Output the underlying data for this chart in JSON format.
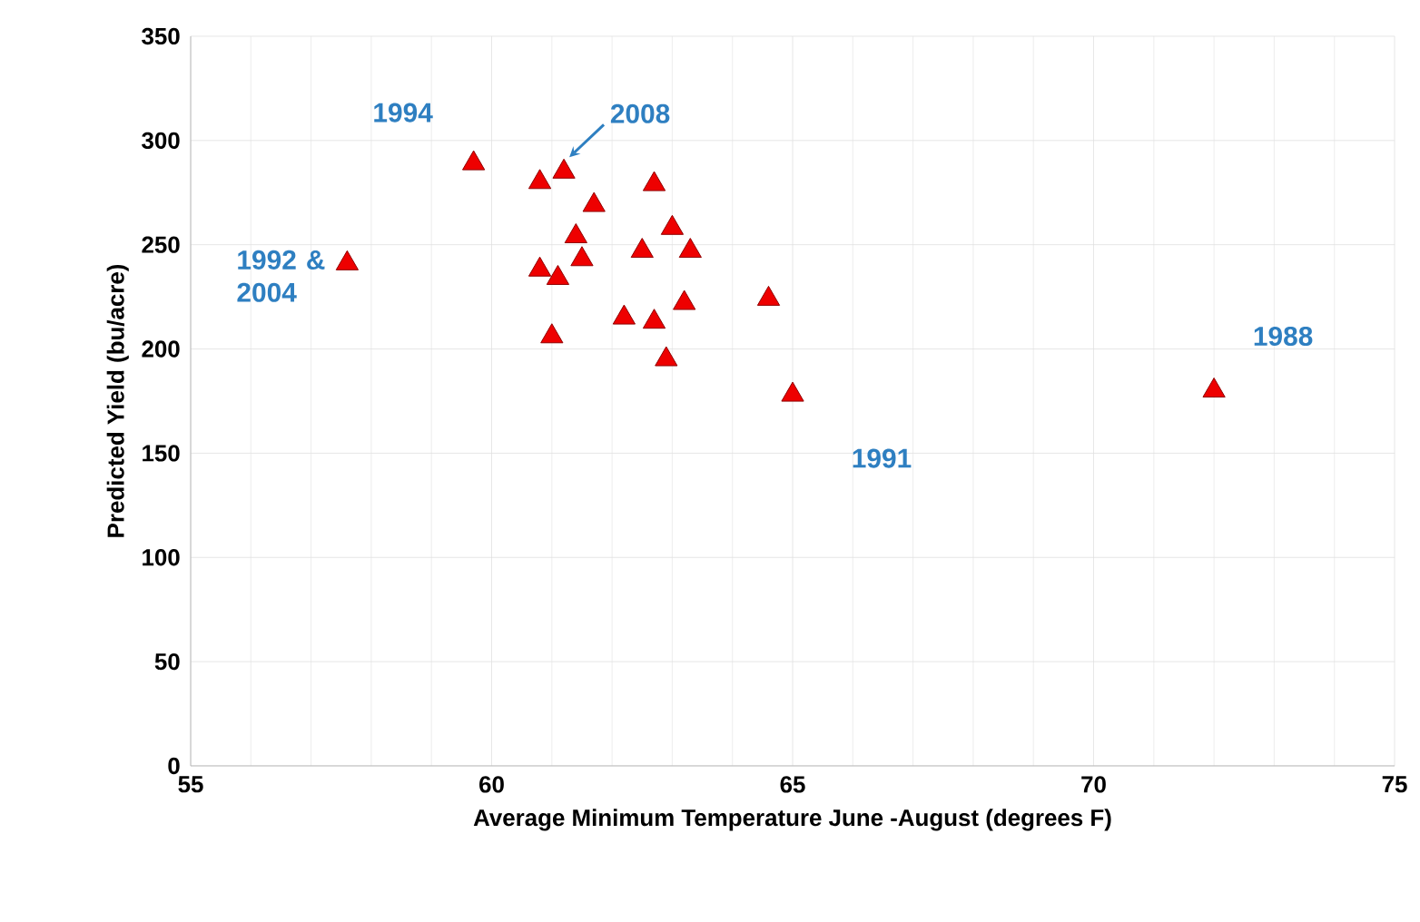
{
  "chart_data": {
    "type": "scatter",
    "xlabel": "Average Minimum Temperature June -August  (degrees F)",
    "ylabel": "Predicted Yield (bu/acre)",
    "x": [
      57.6,
      59.7,
      60.8,
      61.2,
      61.7,
      62.7,
      61.4,
      61.5,
      60.8,
      61.1,
      61.0,
      62.5,
      63.0,
      63.3,
      63.2,
      62.2,
      62.7,
      62.9,
      64.6,
      65.0,
      72.0
    ],
    "series": [
      {
        "color": "#ee0000",
        "values": [
          241,
          289,
          280,
          285,
          269,
          279,
          254,
          243,
          238,
          234,
          206,
          247,
          258,
          247,
          222,
          215,
          213,
          195,
          224,
          178,
          180
        ]
      }
    ],
    "marker": "triangle",
    "grid": true,
    "xlim": [
      55,
      75
    ],
    "xticks": [
      55,
      60,
      65,
      70,
      75
    ],
    "ylim": [
      0,
      350
    ],
    "yticks": [
      0,
      50,
      100,
      150,
      200,
      250,
      300,
      350
    ],
    "annotations": [
      {
        "text": "1994",
        "x": 59.7,
        "y": 289
      },
      {
        "text": "2008",
        "x": 61.2,
        "y": 285
      },
      {
        "text": "1992 & 2004",
        "x": 57.6,
        "y": 241
      },
      {
        "text": "1991",
        "x": 65.0,
        "y": 178
      },
      {
        "text": "1988",
        "x": 72.0,
        "y": 180
      }
    ]
  }
}
